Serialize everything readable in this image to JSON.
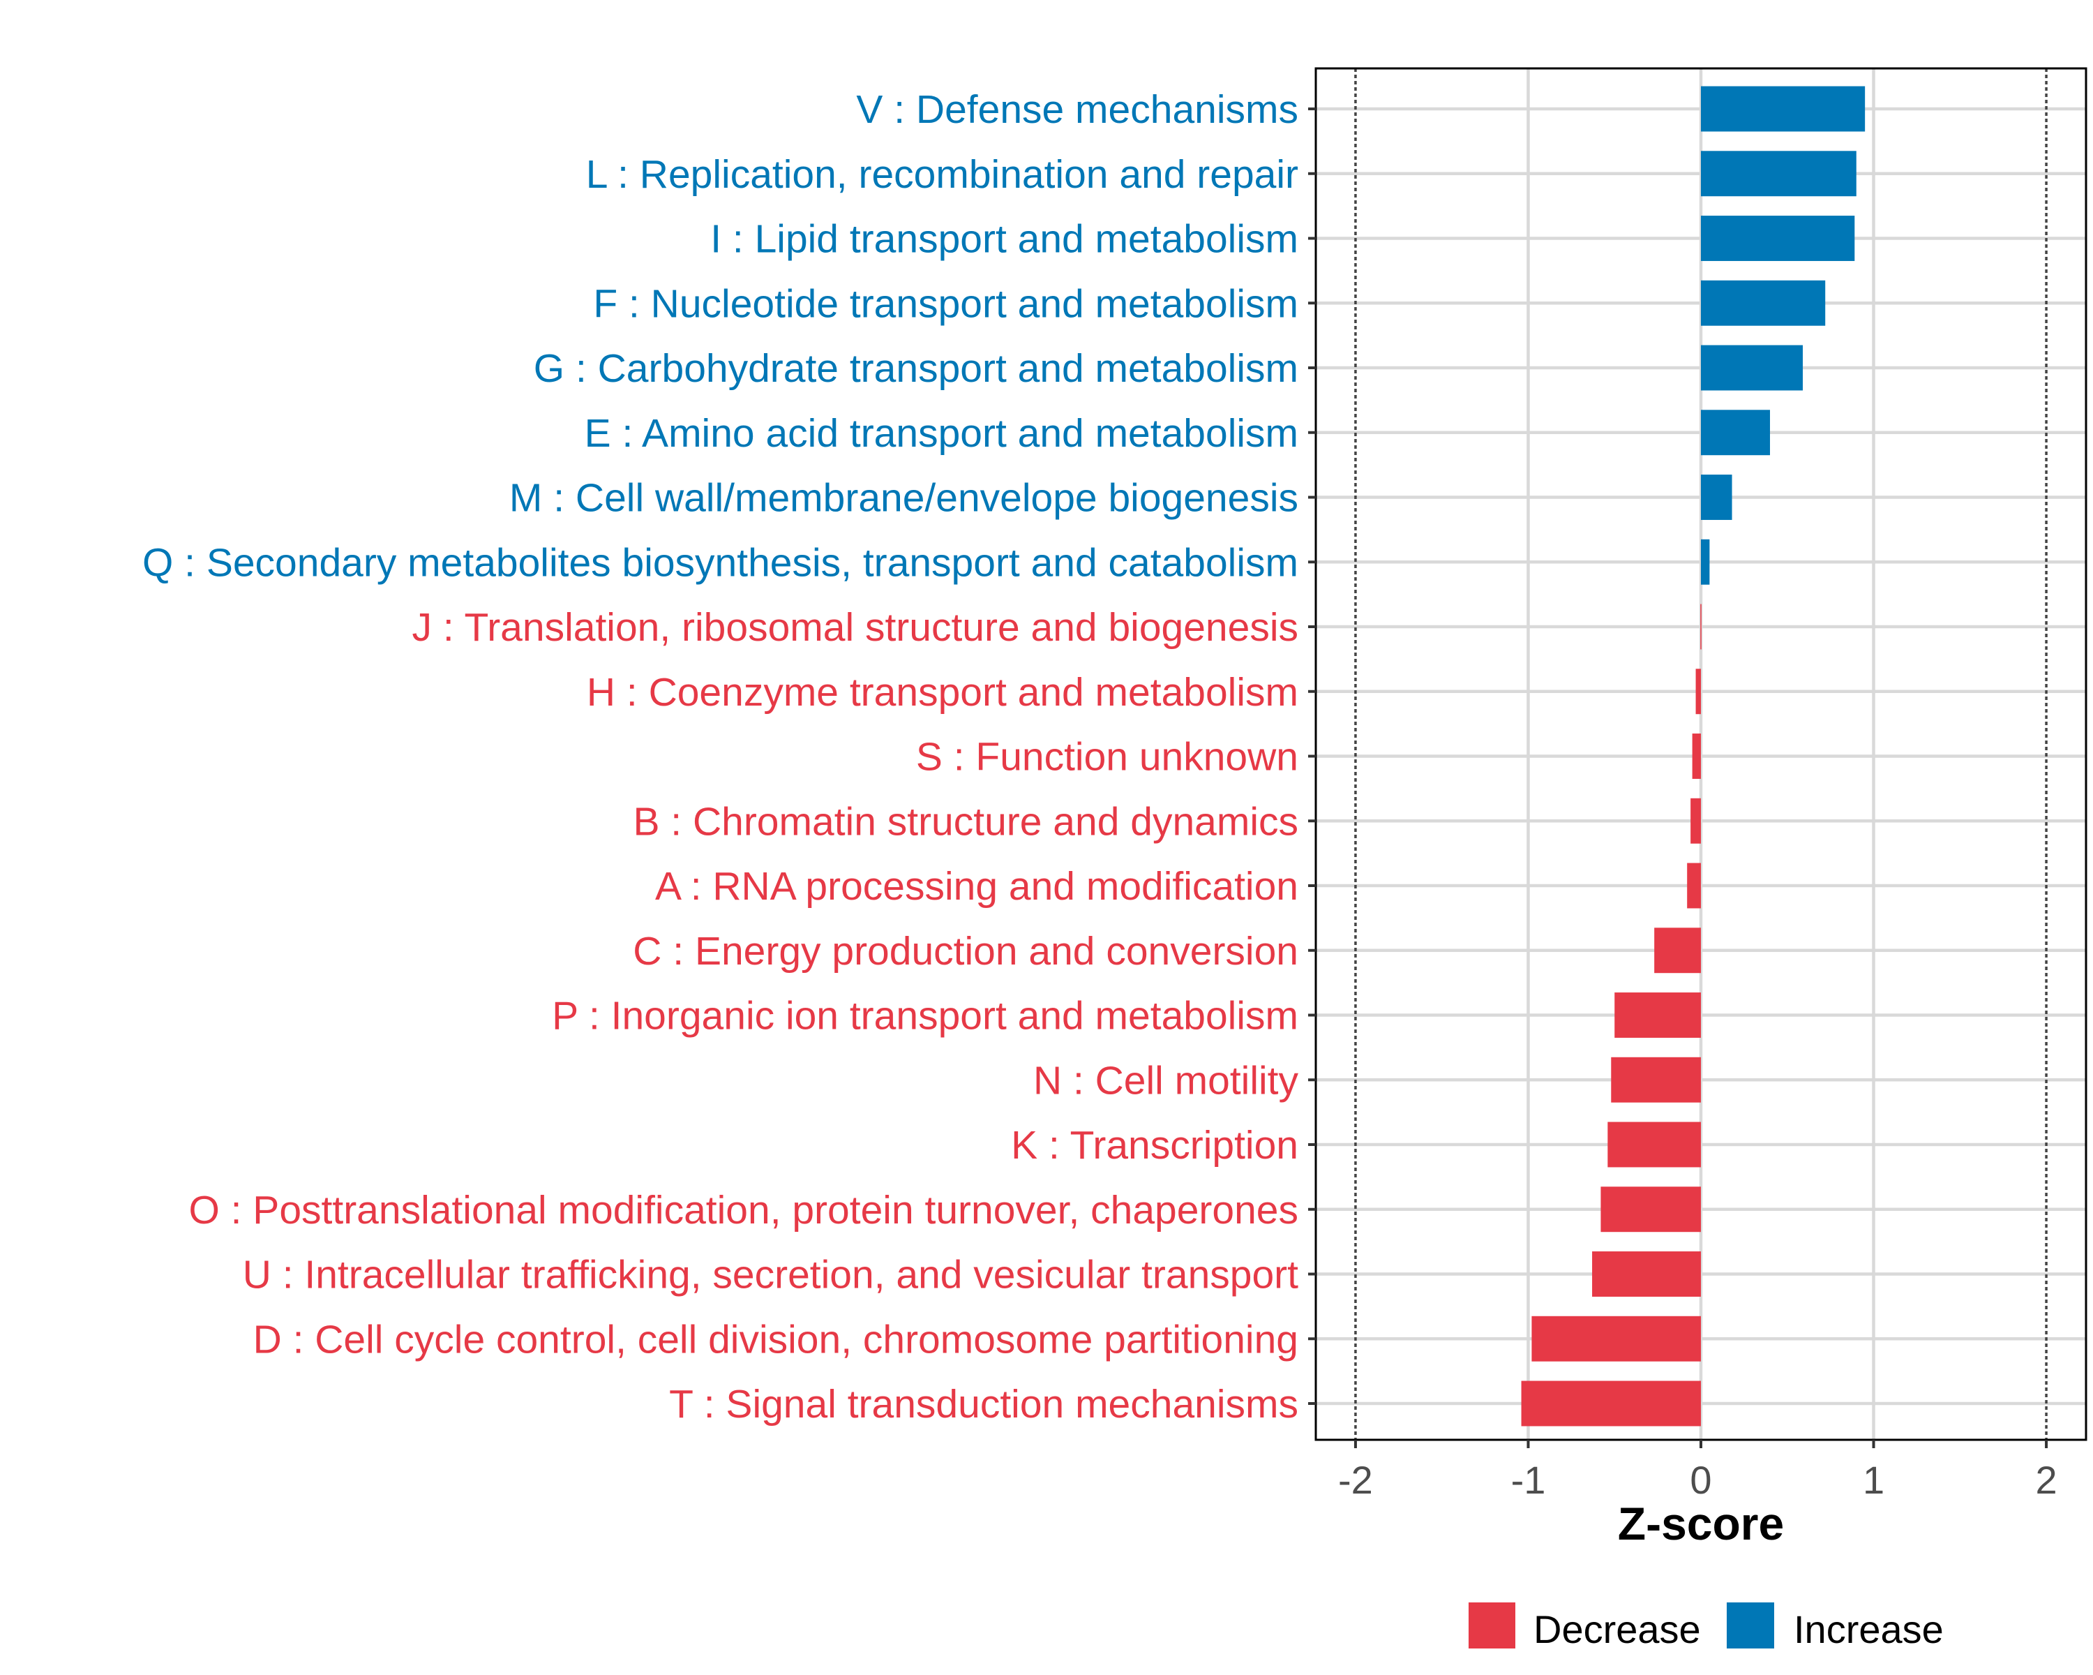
{
  "chart_data": {
    "type": "bar",
    "orientation": "horizontal",
    "title": "",
    "xlabel": "Z-score",
    "ylabel": "",
    "xlim": [
      -2.23,
      2.23
    ],
    "xticks": [
      -2,
      -1,
      0,
      1,
      2
    ],
    "xtick_labels": [
      "-2",
      "-1",
      "0",
      "1",
      "2"
    ],
    "reference_lines": [
      -2,
      2
    ],
    "grid": true,
    "categories": [
      "V : Defense mechanisms",
      "L : Replication, recombination and repair",
      "I : Lipid transport and metabolism",
      "F : Nucleotide transport and metabolism",
      "G : Carbohydrate transport and metabolism",
      "E : Amino acid transport and metabolism",
      "M : Cell wall/membrane/envelope biogenesis",
      "Q : Secondary metabolites biosynthesis, transport and catabolism",
      "J : Translation, ribosomal structure and biogenesis",
      "H : Coenzyme transport and metabolism",
      "S : Function unknown",
      "B : Chromatin structure and dynamics",
      "A : RNA processing and modification",
      "C : Energy production and conversion",
      "P : Inorganic ion transport and metabolism",
      "N : Cell motility",
      "K : Transcription",
      "O : Posttranslational modification, protein turnover, chaperones",
      "U : Intracellular trafficking, secretion, and vesicular transport",
      "D : Cell cycle control, cell division, chromosome partitioning",
      "T : Signal transduction mechanisms"
    ],
    "values": [
      0.95,
      0.9,
      0.89,
      0.72,
      0.59,
      0.4,
      0.18,
      0.05,
      -0.003,
      -0.03,
      -0.05,
      -0.06,
      -0.08,
      -0.27,
      -0.5,
      -0.52,
      -0.54,
      -0.58,
      -0.63,
      -0.98,
      -1.04
    ],
    "legend": {
      "position": "bottom",
      "entries": [
        {
          "label": "Decrease",
          "color": "#E63946"
        },
        {
          "label": "Increase",
          "color": "#0077B6"
        }
      ]
    },
    "colors": {
      "increase": "#0077B6",
      "decrease": "#E63946"
    }
  }
}
